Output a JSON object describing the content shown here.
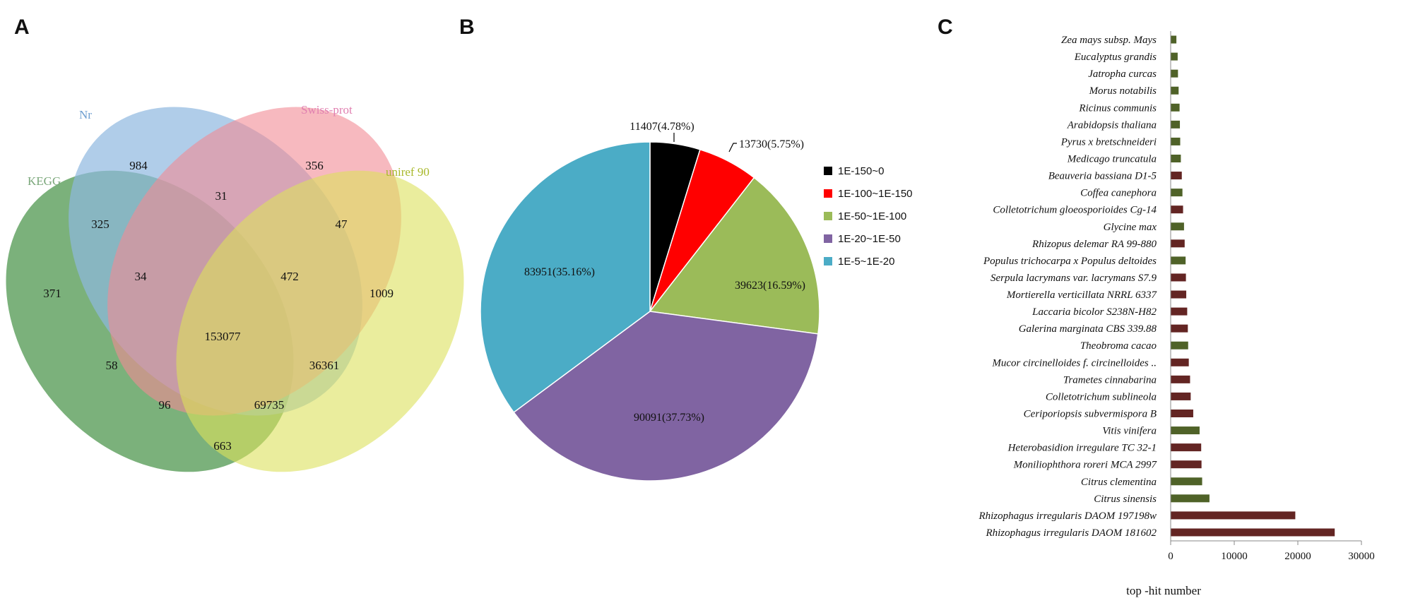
{
  "panels": {
    "a": "A",
    "b": "B",
    "c": "C"
  },
  "chart_data": [
    {
      "type": "venn",
      "sets": [
        {
          "name": "KEGG",
          "color": "#5a9e5a",
          "label_color": "#7aa77a"
        },
        {
          "name": "Nr",
          "color": "#8fb8e0",
          "label_color": "#6e9fd0"
        },
        {
          "name": "Swiss-prot",
          "color": "#f28a95",
          "label_color": "#e07fb0"
        },
        {
          "name": "uniref 90",
          "color": "#dce15c",
          "label_color": "#a8b82a"
        }
      ],
      "regions": [
        {
          "sets": [
            "Nr"
          ],
          "value": "984"
        },
        {
          "sets": [
            "Swiss-prot"
          ],
          "value": "356"
        },
        {
          "sets": [
            "KEGG"
          ],
          "value": "371"
        },
        {
          "sets": [
            "uniref 90"
          ],
          "value": "1009"
        },
        {
          "sets": [
            "KEGG",
            "Nr"
          ],
          "value": "325"
        },
        {
          "sets": [
            "Nr",
            "Swiss-prot"
          ],
          "value": "31"
        },
        {
          "sets": [
            "Swiss-prot",
            "uniref 90"
          ],
          "value": "47"
        },
        {
          "sets": [
            "KEGG",
            "Nr",
            "Swiss-prot"
          ],
          "value": "34"
        },
        {
          "sets": [
            "Nr",
            "Swiss-prot",
            "uniref 90"
          ],
          "value": "472"
        },
        {
          "sets": [
            "KEGG",
            "Nr",
            "Swiss-prot",
            "uniref 90"
          ],
          "value": "153077"
        },
        {
          "sets": [
            "KEGG",
            "Swiss-prot"
          ],
          "value": "58"
        },
        {
          "sets": [
            "Nr",
            "uniref 90"
          ],
          "value": "36361"
        },
        {
          "sets": [
            "KEGG",
            "Swiss-prot",
            "uniref 90"
          ],
          "value": "96"
        },
        {
          "sets": [
            "KEGG",
            "Nr",
            "uniref 90"
          ],
          "value": "69735"
        },
        {
          "sets": [
            "KEGG",
            "uniref 90"
          ],
          "value": "663"
        }
      ]
    },
    {
      "type": "pie",
      "slices": [
        {
          "name": "1E-150~0",
          "value": 11407,
          "label": "11407(4.78%)",
          "color": "#000000"
        },
        {
          "name": "1E-100~1E-150",
          "value": 13730,
          "label": "13730(5.75%)",
          "color": "#ff0000"
        },
        {
          "name": "1E-50~1E-100",
          "value": 39623,
          "label": "39623(16.59%)",
          "color": "#9bbb59"
        },
        {
          "name": "1E-20~1E-50",
          "value": 90091,
          "label": "90091(37.73%)",
          "color": "#8064a2"
        },
        {
          "name": "1E-5~1E-20",
          "value": 83951,
          "label": "83951(35.16%)",
          "color": "#4bacc6"
        }
      ],
      "legend": "right"
    },
    {
      "type": "bar",
      "orientation": "horizontal",
      "xlabel": "top -hit number",
      "xlim": [
        0,
        30000
      ],
      "xticks": [
        "0",
        "10000",
        "20000",
        "30000"
      ],
      "categories": [
        {
          "name": "Zea mays subsp. Mays",
          "value": 900,
          "color": "#4f6228"
        },
        {
          "name": "Eucalyptus grandis",
          "value": 1100,
          "color": "#4f6228"
        },
        {
          "name": "Jatropha curcas",
          "value": 1150,
          "color": "#4f6228"
        },
        {
          "name": "Morus notabilis",
          "value": 1250,
          "color": "#4f6228"
        },
        {
          "name": "Ricinus communis",
          "value": 1400,
          "color": "#4f6228"
        },
        {
          "name": "Arabidopsis thaliana",
          "value": 1450,
          "color": "#4f6228"
        },
        {
          "name": "Pyrus x bretschneideri",
          "value": 1500,
          "color": "#4f6228"
        },
        {
          "name": "Medicago truncatula",
          "value": 1600,
          "color": "#4f6228"
        },
        {
          "name": "Beauveria bassiana D1-5",
          "value": 1750,
          "color": "#632523"
        },
        {
          "name": "Coffea canephora",
          "value": 1850,
          "color": "#4f6228"
        },
        {
          "name": "Colletotrichum gloeosporioides Cg-14",
          "value": 1950,
          "color": "#632523"
        },
        {
          "name": "Glycine max",
          "value": 2100,
          "color": "#4f6228"
        },
        {
          "name": "Rhizopus delemar RA 99-880",
          "value": 2200,
          "color": "#632523"
        },
        {
          "name": "Populus trichocarpa x Populus deltoides",
          "value": 2350,
          "color": "#4f6228"
        },
        {
          "name": "Serpula lacrymans var. lacrymans S7.9",
          "value": 2400,
          "color": "#632523"
        },
        {
          "name": "Mortierella verticillata NRRL 6337",
          "value": 2450,
          "color": "#632523"
        },
        {
          "name": "Laccaria bicolor S238N-H82",
          "value": 2600,
          "color": "#632523"
        },
        {
          "name": "Galerina marginata CBS 339.88",
          "value": 2700,
          "color": "#632523"
        },
        {
          "name": "Theobroma cacao",
          "value": 2750,
          "color": "#4f6228"
        },
        {
          "name": "Mucor circinelloides f. circinelloides ..",
          "value": 2850,
          "color": "#632523"
        },
        {
          "name": "Trametes cinnabarina",
          "value": 3050,
          "color": "#632523"
        },
        {
          "name": "Colletotrichum sublineola",
          "value": 3150,
          "color": "#632523"
        },
        {
          "name": "Ceriporiopsis subvermispora B",
          "value": 3550,
          "color": "#632523"
        },
        {
          "name": "Vitis vinifera",
          "value": 4550,
          "color": "#4f6228"
        },
        {
          "name": "Heterobasidion irregulare TC 32-1",
          "value": 4800,
          "color": "#632523"
        },
        {
          "name": "Moniliophthora roreri MCA 2997",
          "value": 4850,
          "color": "#632523"
        },
        {
          "name": "Citrus clementina",
          "value": 4950,
          "color": "#4f6228"
        },
        {
          "name": "Citrus sinensis",
          "value": 6100,
          "color": "#4f6228"
        },
        {
          "name": "Rhizophagus irregularis DAOM 197198w",
          "value": 19600,
          "color": "#632523"
        },
        {
          "name": "Rhizophagus irregularis DAOM 181602",
          "value": 25800,
          "color": "#632523"
        }
      ]
    }
  ]
}
